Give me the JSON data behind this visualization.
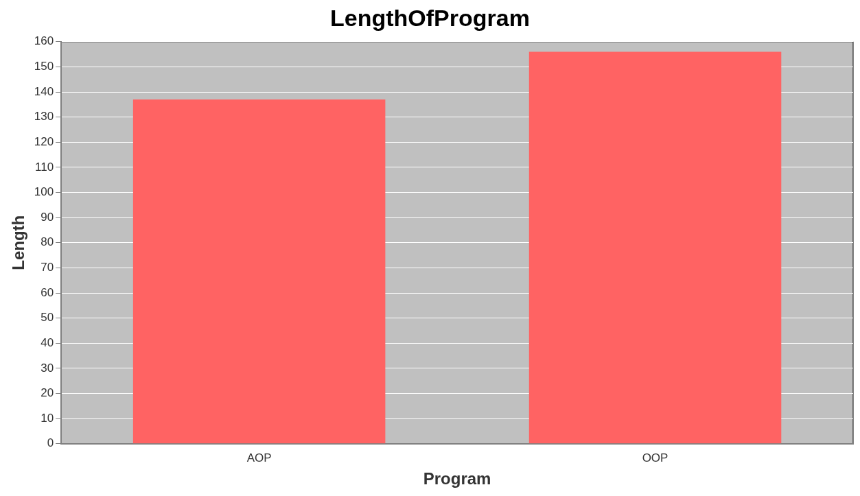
{
  "chart_data": {
    "type": "bar",
    "title": "LengthOfProgram",
    "xlabel": "Program",
    "ylabel": "Length",
    "categories": [
      "AOP",
      "OOP"
    ],
    "values": [
      137,
      156
    ],
    "color": "#ff6363",
    "ylim": [
      0,
      160
    ],
    "yticks": [
      0,
      10,
      20,
      30,
      40,
      50,
      60,
      70,
      80,
      90,
      100,
      110,
      120,
      130,
      140,
      150,
      160
    ],
    "grid": "y",
    "legend": false
  }
}
